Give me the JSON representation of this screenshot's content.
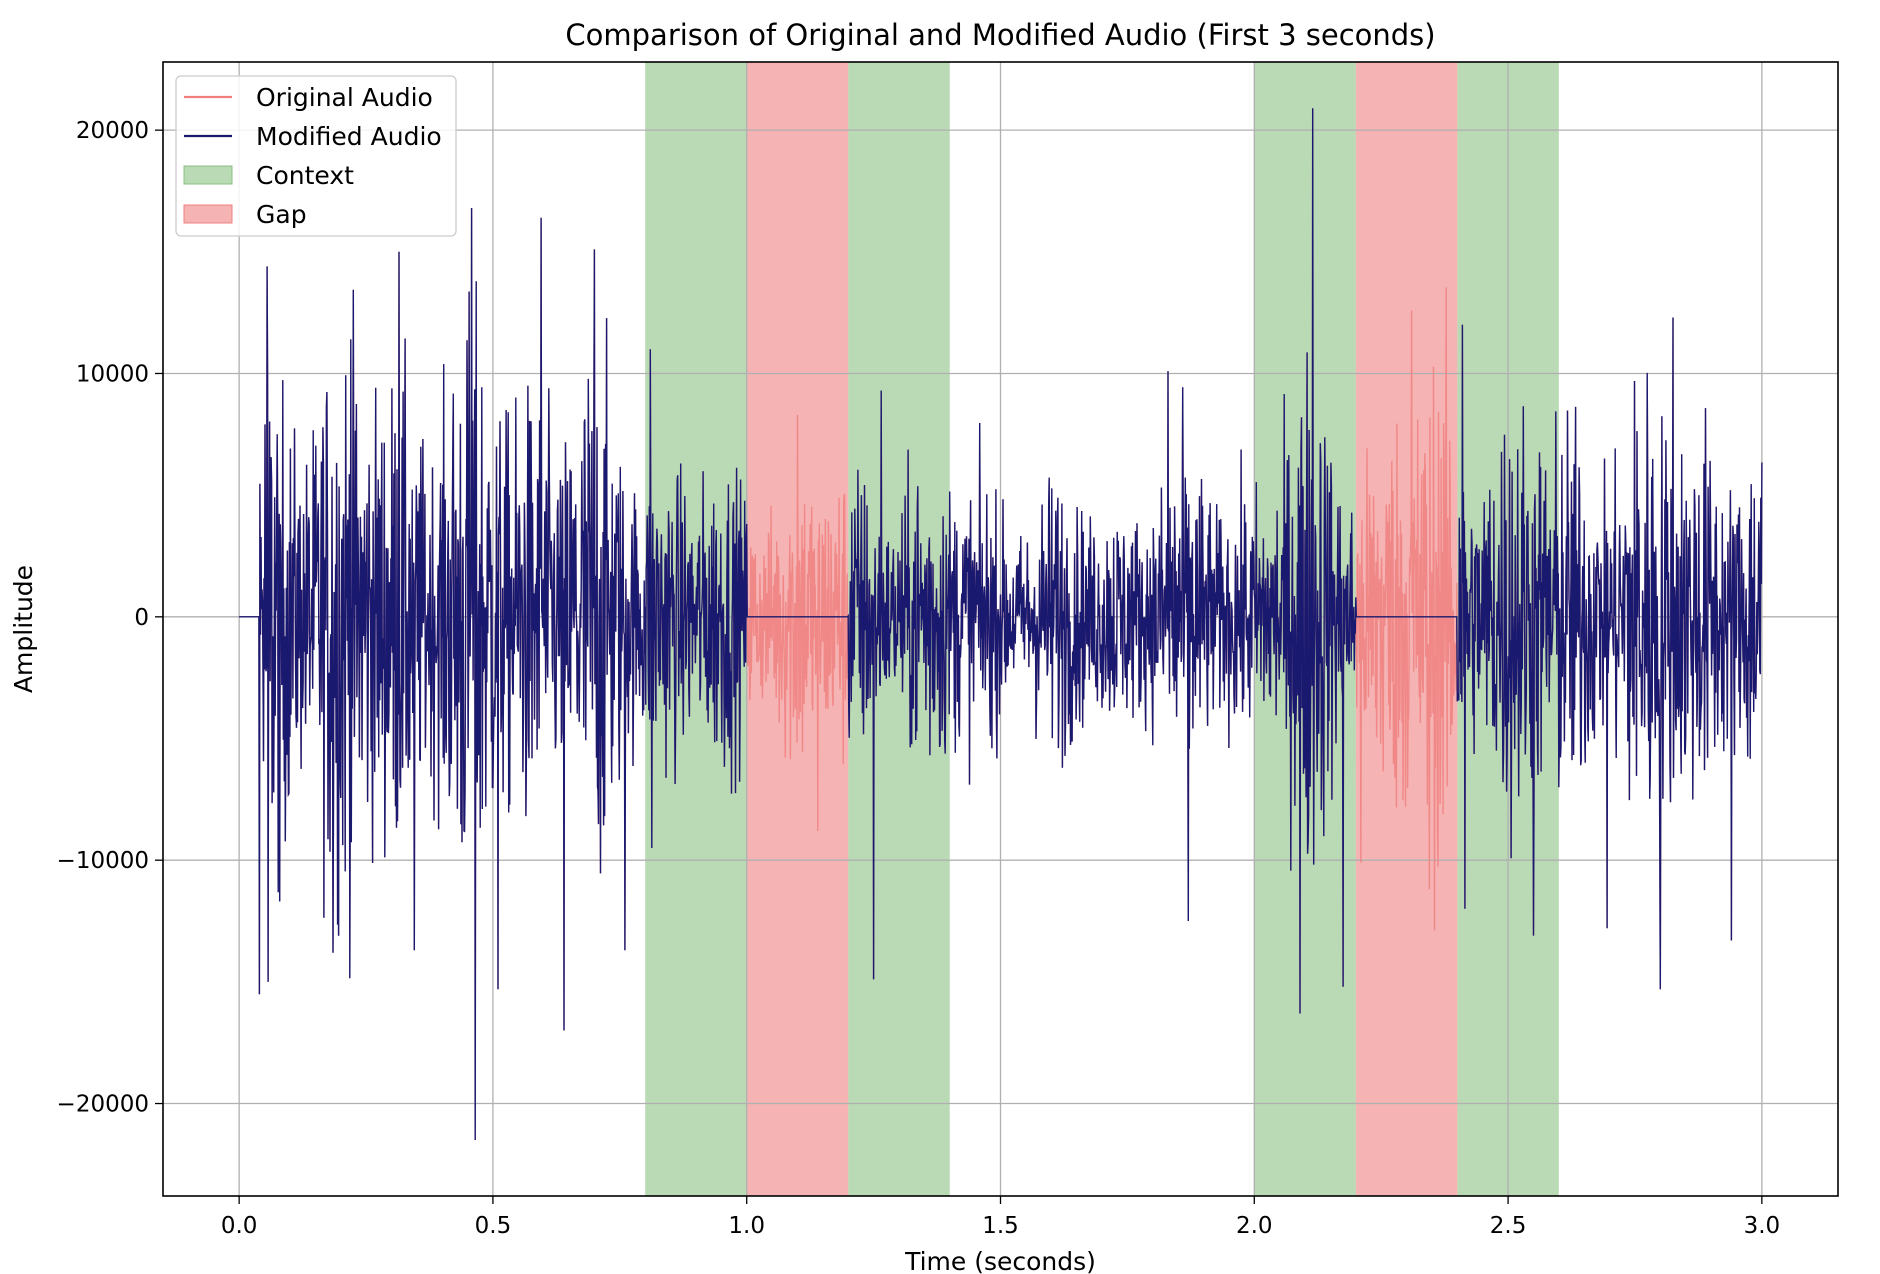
{
  "chart_data": {
    "type": "line",
    "title": "Comparison of Original and Modified Audio (First 3 seconds)",
    "xlabel": "Time (seconds)",
    "ylabel": "Amplitude",
    "xlim": [
      -0.15,
      3.15
    ],
    "ylim": [
      -23800,
      22800
    ],
    "grid": true,
    "legend_position": "top-left",
    "x_ticks": [
      0.0,
      0.5,
      1.0,
      1.5,
      2.0,
      2.5,
      3.0
    ],
    "x_tick_labels": [
      "0.0",
      "0.5",
      "1.0",
      "1.5",
      "2.0",
      "2.5",
      "3.0"
    ],
    "y_ticks": [
      -20000,
      -10000,
      0,
      10000,
      20000
    ],
    "y_tick_labels": [
      "−20000",
      "−10000",
      "0",
      "10000",
      "20000"
    ],
    "series": [
      {
        "name": "Original Audio",
        "color": "#f08080",
        "duration_s": 3.0,
        "signal_start_s": 0.04,
        "peaks": [
          {
            "x": 0.055,
            "y": 14400
          },
          {
            "x": 0.057,
            "y": -15000
          },
          {
            "x": 0.08,
            "y": -11700
          },
          {
            "x": 0.185,
            "y": -13800
          },
          {
            "x": 0.22,
            "y": 11400
          },
          {
            "x": 0.315,
            "y": 15000
          },
          {
            "x": 0.345,
            "y": -13700
          },
          {
            "x": 0.458,
            "y": 16800
          },
          {
            "x": 0.465,
            "y": -21500
          },
          {
            "x": 0.51,
            "y": -15300
          },
          {
            "x": 0.595,
            "y": 16400
          },
          {
            "x": 0.64,
            "y": -17000
          },
          {
            "x": 0.7,
            "y": 15100
          },
          {
            "x": 0.76,
            "y": -13700
          },
          {
            "x": 0.81,
            "y": 11000
          },
          {
            "x": 0.813,
            "y": -9500
          },
          {
            "x": 1.1,
            "y": 8300
          },
          {
            "x": 1.14,
            "y": -8800
          },
          {
            "x": 1.25,
            "y": -14900
          },
          {
            "x": 1.265,
            "y": 9300
          },
          {
            "x": 1.83,
            "y": 10100
          },
          {
            "x": 1.87,
            "y": -12500
          },
          {
            "x": 2.09,
            "y": -16300
          },
          {
            "x": 2.115,
            "y": 20900
          },
          {
            "x": 2.175,
            "y": -15200
          },
          {
            "x": 2.21,
            "y": -10100
          },
          {
            "x": 2.31,
            "y": 12600
          },
          {
            "x": 2.345,
            "y": -11200
          },
          {
            "x": 2.41,
            "y": 12000
          },
          {
            "x": 2.415,
            "y": -12000
          },
          {
            "x": 2.55,
            "y": -13100
          },
          {
            "x": 2.695,
            "y": -12800
          },
          {
            "x": 2.8,
            "y": -15300
          },
          {
            "x": 2.825,
            "y": 12300
          },
          {
            "x": 2.94,
            "y": 11900
          },
          {
            "x": 2.94,
            "y": -13300
          }
        ]
      },
      {
        "name": "Modified Audio",
        "color": "#191970",
        "gaps_zeroed": [
          [
            1.0,
            1.2
          ],
          [
            2.2,
            2.4
          ]
        ]
      }
    ],
    "regions": [
      {
        "name": "Context",
        "color": "#8cc084",
        "spans": [
          [
            0.8,
            1.0
          ],
          [
            1.2,
            1.4
          ],
          [
            2.0,
            2.2
          ],
          [
            2.4,
            2.6
          ]
        ]
      },
      {
        "name": "Gap",
        "color": "#f08080",
        "spans": [
          [
            1.0,
            1.2
          ],
          [
            2.2,
            2.4
          ]
        ]
      }
    ],
    "legend": [
      {
        "label": "Original Audio",
        "kind": "line",
        "color": "#f08080"
      },
      {
        "label": "Modified Audio",
        "kind": "line",
        "color": "#191970"
      },
      {
        "label": "Context",
        "kind": "patch",
        "color": "#8cc084"
      },
      {
        "label": "Gap",
        "kind": "patch",
        "color": "#f08080"
      }
    ]
  }
}
